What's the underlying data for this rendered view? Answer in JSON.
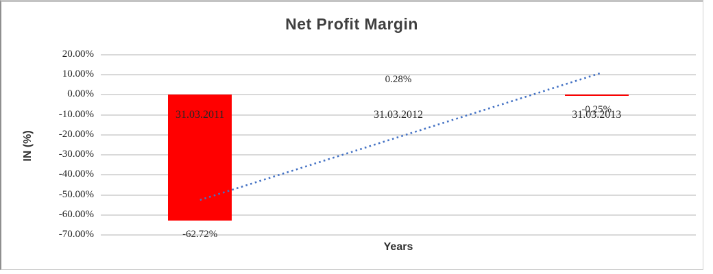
{
  "chart_data": {
    "type": "bar",
    "title": "Net Profit Margin",
    "xlabel": "Years",
    "ylabel": "IN (%)",
    "categories": [
      "31.03.2011",
      "31.03.2012",
      "31.03.2013"
    ],
    "values": [
      -62.72,
      0.28,
      -0.25
    ],
    "data_labels": [
      "-62.72%",
      "0.28%",
      "-0.25%"
    ],
    "y_ticks": [
      {
        "value": 20,
        "label": "20.00%"
      },
      {
        "value": 10,
        "label": "10.00%"
      },
      {
        "value": 0,
        "label": "0.00%"
      },
      {
        "value": -10,
        "label": "-10.00%"
      },
      {
        "value": -20,
        "label": "-20.00%"
      },
      {
        "value": -30,
        "label": "-30.00%"
      },
      {
        "value": -40,
        "label": "-40.00%"
      },
      {
        "value": -50,
        "label": "-50.00%"
      },
      {
        "value": -60,
        "label": "-60.00%"
      },
      {
        "value": -70,
        "label": "-70.00%"
      }
    ],
    "ylim": [
      -70,
      20
    ],
    "grid": true,
    "legend": "none",
    "colors": {
      "bar": "#ff0000",
      "trendline": "#4472c4",
      "gridline": "#d9d9d9",
      "title_text": "#3f3f3f",
      "label_text": "#262626"
    },
    "trendline": {
      "type": "linear",
      "style": "dotted",
      "start": {
        "category_index": 0,
        "value": -52.5
      },
      "end": {
        "category_index": 2,
        "value": 10.8
      }
    }
  }
}
